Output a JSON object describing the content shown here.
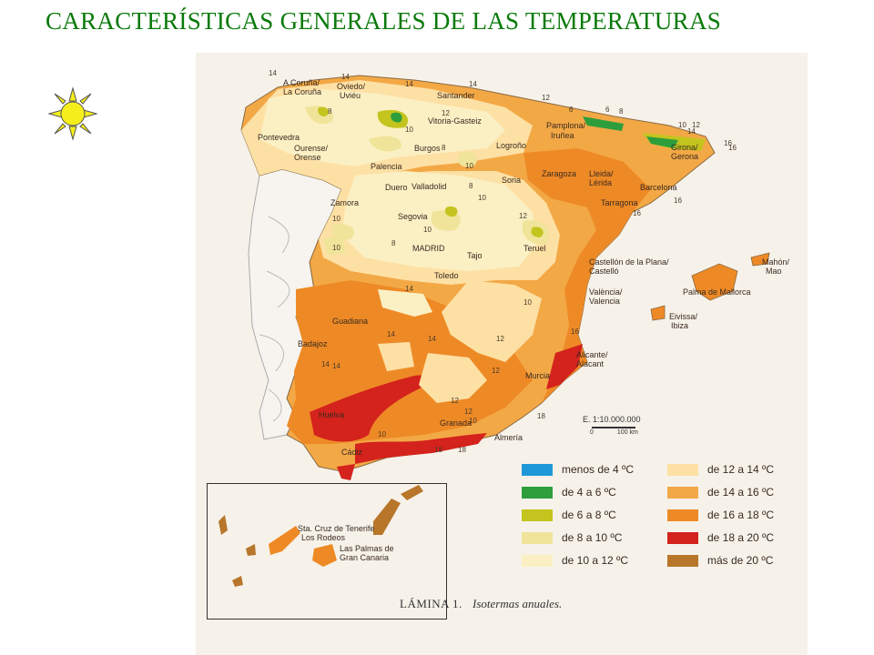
{
  "title": "CARACTERÍSTICAS  GENERALES DE LAS TEMPERATURAS",
  "icons": {
    "sun": "sun-icon"
  },
  "map": {
    "caption_number": "LÁMINA 1.",
    "caption_title": "Isotermas anuales.",
    "scale_label": "E. 1:10.000.000",
    "scale_ticks": [
      "0",
      "100 km"
    ],
    "cities": [
      {
        "id": "a-coruna",
        "label": "A Coruña/"
      },
      {
        "id": "la-coruna",
        "label": "La Coruña"
      },
      {
        "id": "oviedo",
        "label": "Oviedo/"
      },
      {
        "id": "uvieu",
        "label": "Uviéu"
      },
      {
        "id": "santander",
        "label": "Santander"
      },
      {
        "id": "vitoria",
        "label": "Vitoria-Gasteiz"
      },
      {
        "id": "pamplona",
        "label": "Pamplona/"
      },
      {
        "id": "irunea",
        "label": "Iruñea"
      },
      {
        "id": "girona",
        "label": "Girona/"
      },
      {
        "id": "gerona",
        "label": "Gerona"
      },
      {
        "id": "pontevedra",
        "label": "Pontevedra"
      },
      {
        "id": "ourense",
        "label": "Ourense/"
      },
      {
        "id": "orense",
        "label": "Orense"
      },
      {
        "id": "burgos",
        "label": "Burgos"
      },
      {
        "id": "logrono",
        "label": "Logroño"
      },
      {
        "id": "palencia",
        "label": "Palencia"
      },
      {
        "id": "zaragoza",
        "label": "Zaragoza"
      },
      {
        "id": "lleida",
        "label": "Lleida/"
      },
      {
        "id": "lerida",
        "label": "Lérida"
      },
      {
        "id": "barcelona",
        "label": "Barcelona"
      },
      {
        "id": "soria",
        "label": "Soria"
      },
      {
        "id": "valladolid",
        "label": "Valladolid"
      },
      {
        "id": "zamora",
        "label": "Zamora"
      },
      {
        "id": "duero",
        "label": "Duero"
      },
      {
        "id": "tarragona",
        "label": "Tarragona"
      },
      {
        "id": "segovia",
        "label": "Segovia"
      },
      {
        "id": "madrid",
        "label": "MADRID"
      },
      {
        "id": "teruel",
        "label": "Teruel"
      },
      {
        "id": "tajo",
        "label": "Tajo"
      },
      {
        "id": "castellon",
        "label": "Castellón de la Plana/"
      },
      {
        "id": "castello",
        "label": "Castelló"
      },
      {
        "id": "mahon",
        "label": "Mahón/"
      },
      {
        "id": "mao",
        "label": "Mao"
      },
      {
        "id": "palma",
        "label": "Palma de Mallorca"
      },
      {
        "id": "toledo",
        "label": "Toledo"
      },
      {
        "id": "valencia1",
        "label": "València/"
      },
      {
        "id": "valencia2",
        "label": "Valencia"
      },
      {
        "id": "eivissa",
        "label": "Eivissa/"
      },
      {
        "id": "ibiza",
        "label": "Ibiza"
      },
      {
        "id": "guadiana",
        "label": "Guadiana"
      },
      {
        "id": "badajoz",
        "label": "Badajoz"
      },
      {
        "id": "alicante",
        "label": "Alicante/"
      },
      {
        "id": "alacant",
        "label": "Alacant"
      },
      {
        "id": "murcia",
        "label": "Murcia"
      },
      {
        "id": "huelva",
        "label": "Huelva"
      },
      {
        "id": "granada",
        "label": "Granada"
      },
      {
        "id": "almeria",
        "label": "Almería"
      },
      {
        "id": "cadiz",
        "label": "Cádiz"
      },
      {
        "id": "tenerife",
        "label": "Sta. Cruz de Tenerife"
      },
      {
        "id": "rodeos",
        "label": "Los Rodeos"
      },
      {
        "id": "laspalmas",
        "label": "Las Palmas de"
      },
      {
        "id": "grancanaria",
        "label": "Gran Canaria"
      }
    ],
    "isotherm_labels": [
      "14",
      "14",
      "14",
      "14",
      "12",
      "6",
      "6",
      "8",
      "10",
      "12",
      "16",
      "14",
      "12",
      "10",
      "8",
      "8",
      "10",
      "8",
      "10",
      "12",
      "10",
      "10",
      "8",
      "10",
      "16",
      "16",
      "14",
      "14",
      "14",
      "12",
      "14",
      "12",
      "16",
      "10",
      "18",
      "18",
      "18",
      "12",
      "12",
      "10",
      "14",
      "10",
      "16"
    ]
  },
  "legend": [
    {
      "label": "menos de 4 ºC",
      "color": "#1e98d8"
    },
    {
      "label": "de 4 a 6 ºC",
      "color": "#2e9e3c"
    },
    {
      "label": "de 6 a 8 ºC",
      "color": "#c4c41e"
    },
    {
      "label": "de 8 a 10 ºC",
      "color": "#f0e49a"
    },
    {
      "label": "de 10 a 12 ºC",
      "color": "#fbf0c4"
    },
    {
      "label": "de 12 a 14 ºC",
      "color": "#fde0a4"
    },
    {
      "label": "de 14 a 16 ºC",
      "color": "#f3a846"
    },
    {
      "label": "de 16 a 18 ºC",
      "color": "#ee8a26"
    },
    {
      "label": "de 18 a 20 ºC",
      "color": "#d4221c"
    },
    {
      "label": "más de 20 ºC",
      "color": "#b8762a"
    }
  ]
}
